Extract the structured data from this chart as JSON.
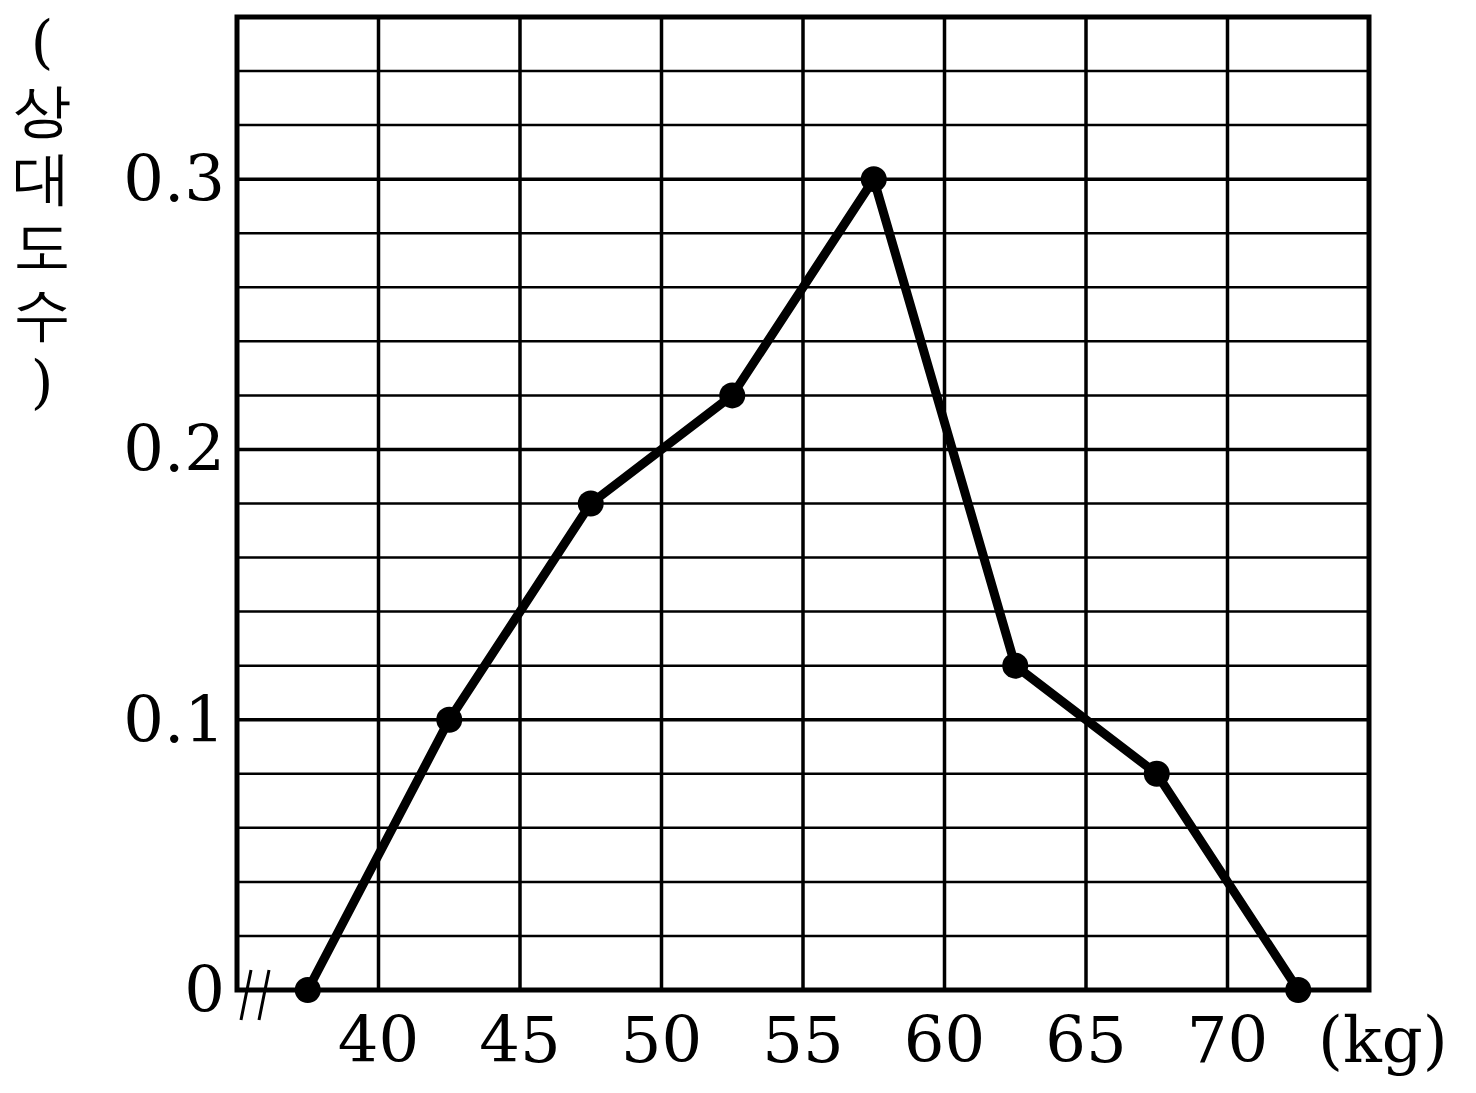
{
  "chart_data": {
    "type": "line",
    "xlabel": "(kg)",
    "ylabel": "(상대도수)",
    "x": [
      37.5,
      42.5,
      47.5,
      52.5,
      57.5,
      62.5,
      67.5,
      72.5
    ],
    "series": [
      {
        "color": "#000000",
        "values": [
          0,
          0.1,
          0.18,
          0.22,
          0.3,
          0.12,
          0.08,
          0
        ]
      }
    ],
    "xlim": [
      35,
      75
    ],
    "ylim": [
      0,
      0.36
    ],
    "xticks": [
      40,
      45,
      50,
      55,
      60,
      65,
      70
    ],
    "yticks": [
      0,
      {
        "value": 0.02,
        "label": null
      },
      {
        "value": 0.04,
        "label": null
      },
      {
        "value": 0.06,
        "label": null
      },
      {
        "value": 0.08,
        "label": null
      },
      0.1,
      {
        "value": 0.12,
        "label": null
      },
      {
        "value": 0.14,
        "label": null
      },
      {
        "value": 0.16,
        "label": null
      },
      {
        "value": 0.18,
        "label": null
      },
      0.2,
      {
        "value": 0.22,
        "label": null
      },
      {
        "value": 0.24,
        "label": null
      },
      {
        "value": 0.26,
        "label": null
      },
      {
        "value": 0.28,
        "label": null
      },
      0.3,
      {
        "value": 0.32,
        "label": null
      },
      {
        "value": 0.34,
        "label": null
      }
    ],
    "grid": true,
    "marker": "circle",
    "line_style": "solid"
  }
}
